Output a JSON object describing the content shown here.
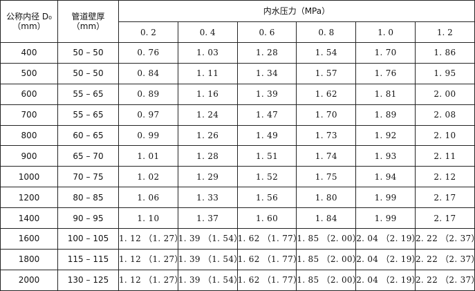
{
  "header": {
    "diameter_label_line1": "公称内径 D₀",
    "diameter_label_line2": "（mm）",
    "wall_label_line1": "管道壁厚",
    "wall_label_line2": "（mm）",
    "pressure_label": "内水压力（MPa）",
    "pressures": [
      "0. 2",
      "0. 4",
      "0. 6",
      "0. 8",
      "1. 0",
      "1. 2"
    ]
  },
  "rows": [
    {
      "diameter": "400",
      "wall": "50 – 50",
      "values": [
        "0. 76",
        "1. 03",
        "1. 28",
        "1. 54",
        "1. 70",
        "1. 86"
      ]
    },
    {
      "diameter": "500",
      "wall": "50 – 50",
      "values": [
        "0. 84",
        "1. 11",
        "1. 34",
        "1. 57",
        "1. 76",
        "1. 95"
      ]
    },
    {
      "diameter": "600",
      "wall": "55 – 65",
      "values": [
        "0. 89",
        "1. 16",
        "1. 39",
        "1. 62",
        "1. 81",
        "2. 00"
      ]
    },
    {
      "diameter": "700",
      "wall": "55 – 65",
      "values": [
        "0. 97",
        "1. 24",
        "1. 47",
        "1. 70",
        "1. 89",
        "2. 08"
      ]
    },
    {
      "diameter": "800",
      "wall": "60 – 65",
      "values": [
        "0. 99",
        "1. 26",
        "1. 49",
        "1. 73",
        "1. 92",
        "2. 10"
      ]
    },
    {
      "diameter": "900",
      "wall": "65 – 70",
      "values": [
        "1. 01",
        "1. 28",
        "1. 51",
        "1. 74",
        "1. 93",
        "2. 11"
      ]
    },
    {
      "diameter": "1000",
      "wall": "70 – 75",
      "values": [
        "1. 02",
        "1. 29",
        "1. 52",
        "1. 75",
        "1. 94",
        "2. 12"
      ]
    },
    {
      "diameter": "1200",
      "wall": "80 – 85",
      "values": [
        "1. 06",
        "1. 33",
        "1. 56",
        "1. 80",
        "1. 99",
        "2. 17"
      ]
    },
    {
      "diameter": "1400",
      "wall": "90 – 95",
      "values": [
        "1. 10",
        "1. 37",
        "1. 60",
        "1. 84",
        "1. 99",
        "2. 17"
      ]
    },
    {
      "diameter": "1600",
      "wall": "100 – 105",
      "values": [
        "1. 12 （1. 27）",
        "1. 39 （1. 54）",
        "1. 62 （1. 77）",
        "1. 85 （2. 00）",
        "2. 04 （2. 19）",
        "2. 22 （2. 37）"
      ]
    },
    {
      "diameter": "1800",
      "wall": "115 – 115",
      "values": [
        "1. 12 （1. 27）",
        "1. 39 （1. 54）",
        "1. 62 （1. 77）",
        "1. 85 （2. 00）",
        "2. 04 （2. 19）",
        "2. 22 （2. 37）"
      ]
    },
    {
      "diameter": "2000",
      "wall": "130 – 125",
      "values": [
        "1. 12 （1. 27）",
        "1. 39 （1. 54）",
        "1. 62 （1. 77）",
        "1. 85 （2. 00）",
        "2. 04 （2. 19）",
        "2. 22 （2. 37）"
      ]
    }
  ]
}
